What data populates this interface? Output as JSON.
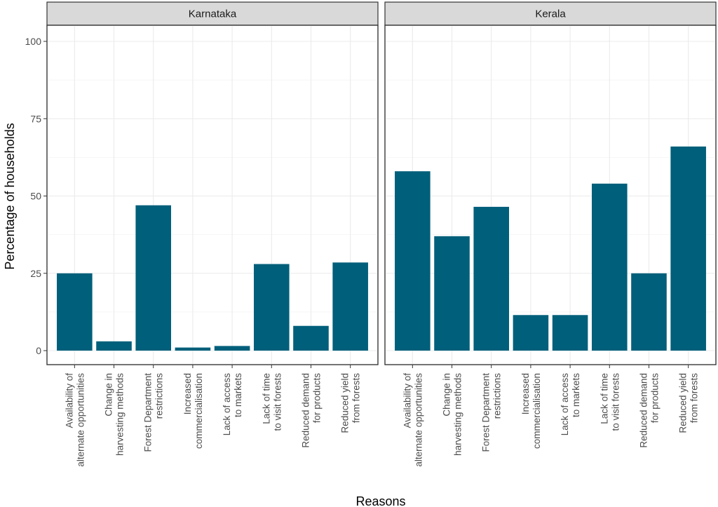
{
  "chart_data": {
    "type": "bar",
    "xlabel": "Reasons",
    "ylabel": "Percentage of households",
    "ylim": [
      0,
      100
    ],
    "yticks": [
      0,
      25,
      50,
      75,
      100
    ],
    "grid": true,
    "bar_color": "#005f7a",
    "categories": [
      "Availability of\nalternate opportunities",
      "Change in\nharvesting methods",
      "Forest Department\nrestrictions",
      "Increased\ncommercialisation",
      "Lack of access\nto markets",
      "Lack of time\nto visit forests",
      "Reduced demand\nfor products",
      "Reduced yield\nfrom forests"
    ],
    "panels": [
      {
        "name": "Karnataka",
        "values": [
          25,
          3,
          47,
          1,
          1.5,
          28,
          8,
          28.5
        ]
      },
      {
        "name": "Kerala",
        "values": [
          58,
          37,
          46.5,
          11.5,
          11.5,
          54,
          25,
          66
        ]
      }
    ]
  }
}
